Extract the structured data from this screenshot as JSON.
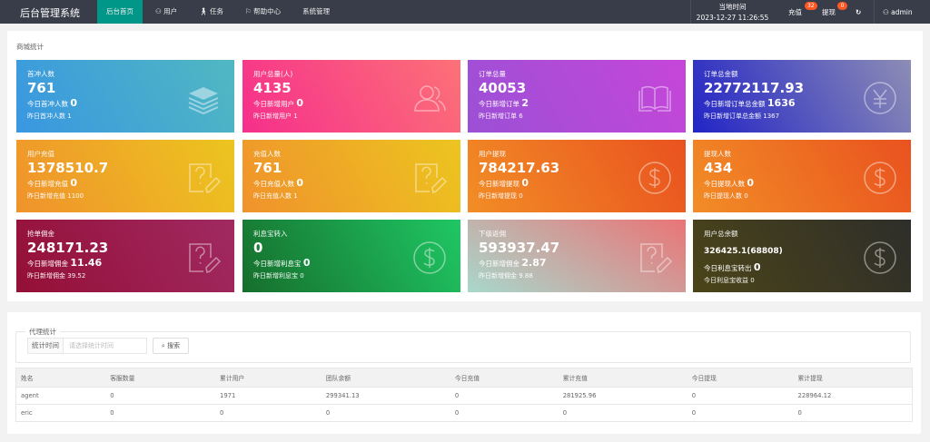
{
  "header": {
    "title": "后台管理系统",
    "nav": [
      "后台首页",
      "用户",
      "任务",
      "帮助中心",
      "系统管理"
    ],
    "time_label": "当地时间",
    "time": "2023-12-27 11:26:55",
    "recharge": "充值",
    "recharge_badge": "32",
    "withdraw": "提现",
    "withdraw_badge": "0",
    "user": "admin"
  },
  "mall": {
    "title": "商城统计",
    "cards": [
      {
        "title": "首冲人数",
        "value": "761",
        "today_label": "今日首冲人数",
        "today": "0",
        "yesterday_label": "昨日首冲人数",
        "yesterday": "1",
        "icon": "layers-icon",
        "colors": [
          "#3997e1",
          "#50b8c2"
        ]
      },
      {
        "title": "用户总量(人)",
        "value": "4135",
        "today_label": "今日新增用户",
        "today": "0",
        "yesterday_label": "昨日新增用户",
        "yesterday": "1",
        "icon": "users-icon",
        "colors": [
          "#f62f8c",
          "#fc7177"
        ]
      },
      {
        "title": "订单总量",
        "value": "40053",
        "today_label": "今日新增订单",
        "today": "2",
        "yesterday_label": "昨日新增订单",
        "yesterday": "6",
        "icon": "book-icon",
        "colors": [
          "#9b50d6",
          "#c646d9"
        ]
      },
      {
        "title": "订单总金额",
        "value": "22772117.93",
        "today_label": "今日新增订单总金额",
        "today": "1636",
        "yesterday_label": "昨日新增订单总金额",
        "yesterday": "1367",
        "icon": "yen-icon",
        "colors": [
          "#2224c6",
          "#8d8db5"
        ]
      },
      {
        "title": "用户充值",
        "value": "1378510.7",
        "today_label": "今日新增充值",
        "today": "0",
        "yesterday_label": "昨日新增充值",
        "yesterday": "1100",
        "icon": "note-question-icon",
        "colors": [
          "#f0922c",
          "#ecc51f"
        ]
      },
      {
        "title": "充值人数",
        "value": "761",
        "today_label": "今日充值人数",
        "today": "0",
        "yesterday_label": "昨日充值人数",
        "yesterday": "1",
        "icon": "note-question-icon",
        "colors": [
          "#f0922c",
          "#ecc51f"
        ]
      },
      {
        "title": "用户提现",
        "value": "784217.63",
        "today_label": "今日新增提现",
        "today": "0",
        "yesterday_label": "昨日新增提现",
        "yesterday": "0",
        "icon": "dollar-icon",
        "colors": [
          "#f28d26",
          "#e9521f"
        ]
      },
      {
        "title": "提现人数",
        "value": "434",
        "today_label": "今日提现人数",
        "today": "0",
        "yesterday_label": "昨日提现人数",
        "yesterday": "0",
        "icon": "dollar-icon",
        "colors": [
          "#f28d26",
          "#e9521f"
        ]
      },
      {
        "title": "抢单佣金",
        "value": "248171.23",
        "today_label": "今日新增佣金",
        "today": "11.46",
        "yesterday_label": "昨日新增佣金",
        "yesterday": "39.52",
        "icon": "note-question-icon",
        "colors": [
          "#940f36",
          "#a02a62"
        ]
      },
      {
        "title": "利息宝转入",
        "value": "0",
        "today_label": "今日新增利息宝",
        "today": "0",
        "yesterday_label": "昨日新增利息宝",
        "yesterday": "0",
        "icon": "dollar-icon",
        "colors": [
          "#166e2c",
          "#1fc764"
        ]
      },
      {
        "title": "下级返佣",
        "value": "593937.47",
        "today_label": "今日新增佣金",
        "today": "2.87",
        "yesterday_label": "昨日新增佣金",
        "yesterday": "9.88",
        "icon": "note-question-icon",
        "colors": [
          "#a8d8cc",
          "#ea7476"
        ]
      },
      {
        "title": "用户总余额",
        "value": "326425.1(68808)",
        "today_label": "今日利息宝转出",
        "today": "0",
        "yesterday_label": "今日利息宝收益",
        "yesterday": "0",
        "icon": "dollar-icon",
        "colors": [
          "#4b4419",
          "#2e2e2a"
        ]
      }
    ]
  },
  "agent": {
    "title": "代理统计",
    "filter_label": "统计时间",
    "filter_placeholder": "请选择统计时间",
    "search": "搜索",
    "columns": [
      "姓名",
      "客服数量",
      "累计用户",
      "团队余额",
      "今日充值",
      "累计充值",
      "今日提现",
      "累计提现"
    ],
    "rows": [
      [
        "agent",
        "0",
        "1971",
        "299341.13",
        "0",
        "281925.96",
        "0",
        "228964.12"
      ],
      [
        "eric",
        "0",
        "0",
        "0",
        "0",
        "0",
        "0",
        "0"
      ]
    ]
  }
}
